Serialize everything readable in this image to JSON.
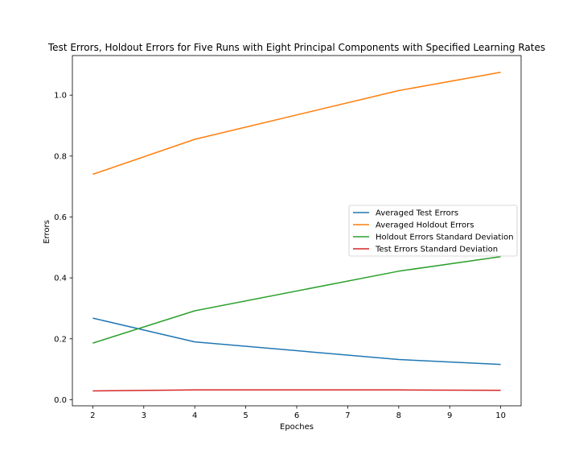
{
  "chart_data": {
    "type": "line",
    "title": "Test Errors, Holdout Errors for Five Runs with Eight Principal Components with Specified Learning Rates",
    "xlabel": "Epoches",
    "ylabel": "Errors",
    "xlim": [
      1.6,
      10.4
    ],
    "ylim": [
      -0.02,
      1.13
    ],
    "xticks": [
      2,
      3,
      4,
      5,
      6,
      7,
      8,
      9,
      10
    ],
    "yticks": [
      0.0,
      0.2,
      0.4,
      0.6,
      0.8,
      1.0
    ],
    "xtick_labels": [
      "2",
      "3",
      "4",
      "5",
      "6",
      "7",
      "8",
      "9",
      "10"
    ],
    "ytick_labels": [
      "0.0",
      "0.2",
      "0.4",
      "0.6",
      "0.8",
      "1.0"
    ],
    "grid": false,
    "legend_position": "center-right",
    "x": [
      2,
      4,
      8,
      10
    ],
    "series": [
      {
        "name": "Averaged Test Errors",
        "color": "#1f77b4",
        "values": [
          0.268,
          0.19,
          0.132,
          0.116
        ]
      },
      {
        "name": "Averaged Holdout Errors",
        "color": "#ff7f0e",
        "values": [
          0.74,
          0.855,
          1.015,
          1.075
        ]
      },
      {
        "name": "Holdout Errors Standard Deviation",
        "color": "#2ca02c",
        "values": [
          0.186,
          0.292,
          0.422,
          0.47
        ]
      },
      {
        "name": "Test Errors Standard Deviation",
        "color": "#d62728",
        "values": [
          0.029,
          0.032,
          0.032,
          0.031
        ]
      }
    ]
  }
}
